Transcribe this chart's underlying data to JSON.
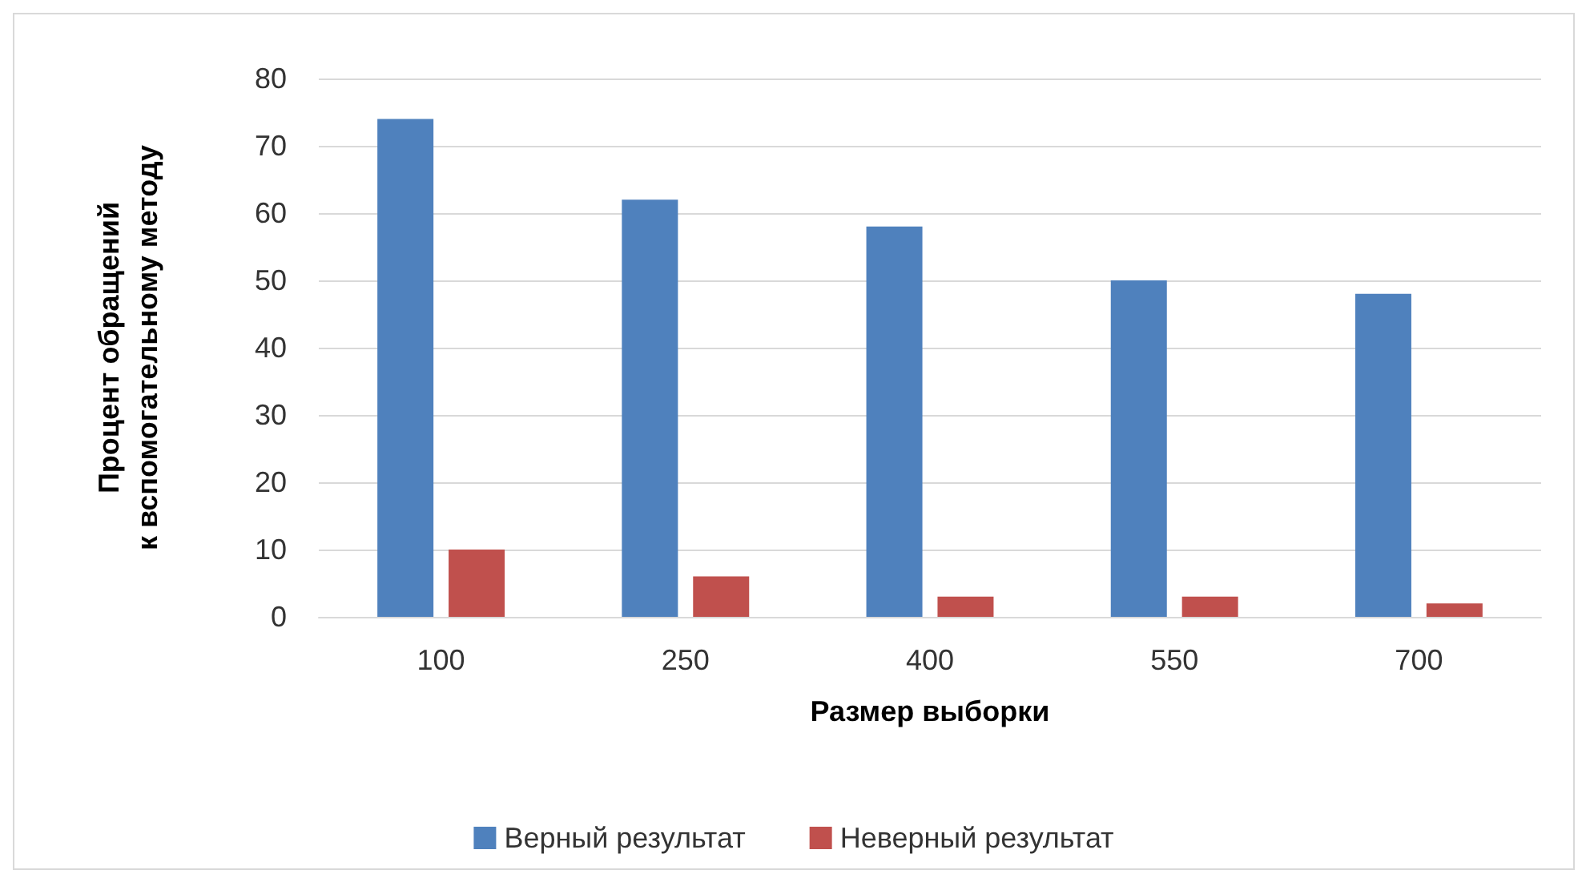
{
  "chart_data": {
    "type": "bar",
    "xlabel": "Размер выборки",
    "ylabel": "Процент обращений\nк вспомогательному методу",
    "categories": [
      "100",
      "250",
      "400",
      "550",
      "700"
    ],
    "series": [
      {
        "name": "Верный результат",
        "color": "#4f81bd",
        "values": [
          74,
          62,
          58,
          50,
          48
        ]
      },
      {
        "name": "Неверный результат",
        "color": "#c0504d",
        "values": [
          10,
          6,
          3,
          3,
          2
        ]
      }
    ],
    "ylim": [
      0,
      80
    ],
    "yticks": [
      0,
      10,
      20,
      30,
      40,
      50,
      60,
      70,
      80
    ],
    "grid": "y",
    "legend": "bottom"
  }
}
